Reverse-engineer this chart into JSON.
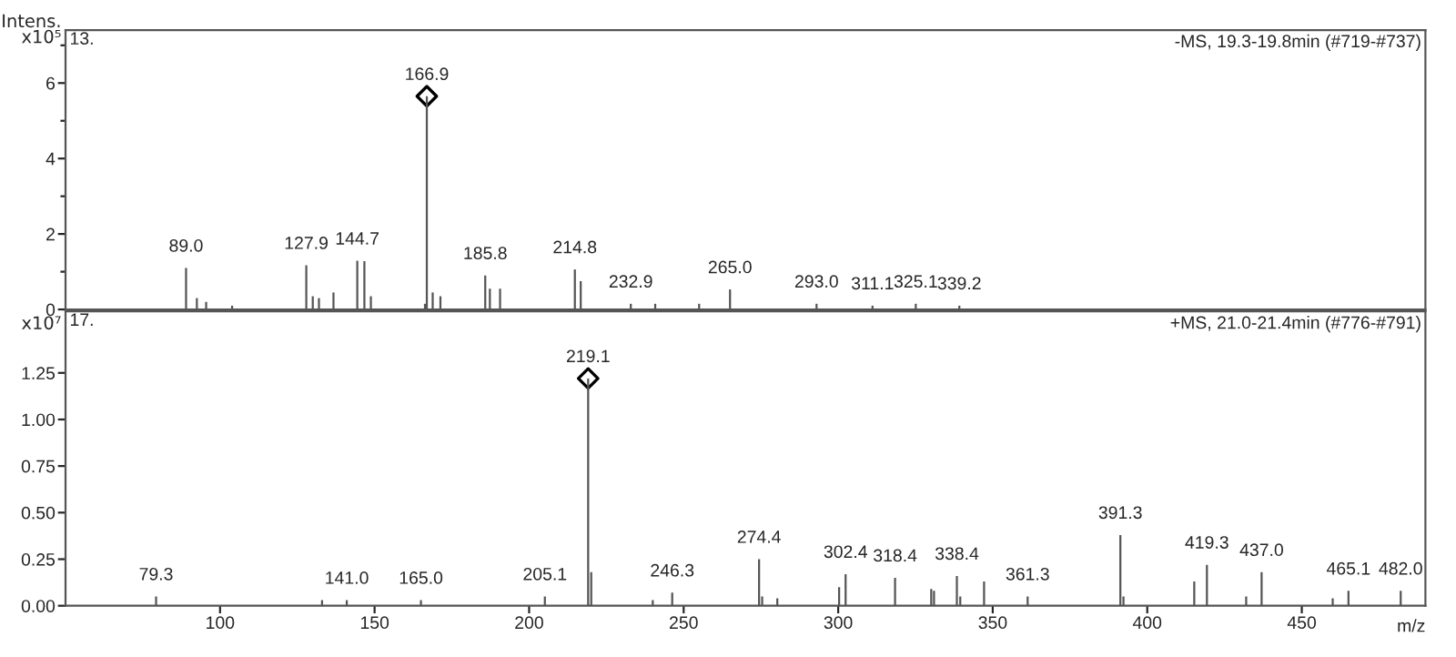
{
  "chart_data": [
    {
      "type": "bar",
      "title": "-MS, 19.3-19.8min (#719-#737)",
      "ylabel": "Intens.\nx10⁵",
      "xlim": [
        50,
        490
      ],
      "xticks": [
        100,
        150,
        200,
        250,
        300,
        350,
        400,
        450
      ],
      "tick_labels": "y",
      "ylim": [
        0,
        7.4
      ],
      "yticks": [
        0,
        {
          "value": 1,
          "label": null
        },
        2,
        {
          "value": 3,
          "label": null
        },
        4,
        {
          "value": 5,
          "label": null
        },
        6,
        {
          "value": 7,
          "label": null
        }
      ],
      "series": [
        {
          "color": "#555555",
          "x": [
            89.0,
            92.5,
            95.5,
            103.9,
            127.9,
            130.0,
            132.0,
            136.7,
            144.4,
            146.7,
            148.8,
            166.3,
            166.9,
            168.8,
            171.3,
            185.8,
            187.3,
            190.6,
            214.8,
            216.7,
            232.9,
            240.8,
            255.0,
            265.0,
            293.0,
            311.1,
            325.1,
            339.2
          ],
          "values": [
            1.1,
            0.3,
            0.2,
            0.1,
            1.17,
            0.35,
            0.3,
            0.45,
            1.29,
            1.28,
            0.35,
            0.15,
            5.65,
            0.45,
            0.35,
            0.9,
            0.55,
            0.55,
            1.06,
            0.75,
            0.15,
            0.15,
            0.15,
            0.53,
            0.15,
            0.1,
            0.15,
            0.1
          ]
        },
        {
          "type": "scatter",
          "marker": "diamond",
          "color": "#000000",
          "x": [
            166.9
          ],
          "values": [
            5.65
          ]
        }
      ],
      "annotations": [
        "13.",
        {
          "text": "89.0",
          "x": 89.0,
          "y": 1.1
        },
        {
          "text": "127.9",
          "x": 127.9,
          "y": 1.17
        },
        {
          "text": "144.7",
          "x": 144.4,
          "y": 1.29
        },
        {
          "text": "166.9",
          "x": 166.9,
          "y": 5.65
        },
        {
          "text": "185.8",
          "x": 185.8,
          "y": 0.9
        },
        {
          "text": "214.8",
          "x": 214.8,
          "y": 1.06
        },
        {
          "text": "232.9",
          "x": 232.9,
          "y": 0.15
        },
        {
          "text": "265.0",
          "x": 265.0,
          "y": 0.53
        },
        {
          "text": "293.0",
          "x": 293.0,
          "y": 0.15
        },
        {
          "text": "311.1",
          "x": 311.1,
          "y": 0.1
        },
        {
          "text": "325.1",
          "x": 325.1,
          "y": 0.15
        },
        {
          "text": "339.2",
          "x": 339.2,
          "y": 0.1
        }
      ]
    },
    {
      "type": "bar",
      "title": "+MS, 21.0-21.4min (#776-#791)",
      "ylabel": "x10⁷",
      "xlabel": "m/z",
      "xlim": [
        50,
        490
      ],
      "xticks": [
        100,
        150,
        200,
        250,
        300,
        350,
        400,
        450
      ],
      "ylim": [
        0,
        1.58
      ],
      "yticks": [
        {
          "value": 0,
          "label": "0.00"
        },
        {
          "value": 0.25,
          "label": "0.25"
        },
        {
          "value": 0.5,
          "label": "0.50"
        },
        {
          "value": 0.75,
          "label": "0.75"
        },
        {
          "value": 1.0,
          "label": "1.00"
        },
        {
          "value": 1.25,
          "label": "1.25"
        }
      ],
      "series": [
        {
          "color": "#555555",
          "x": [
            79.3,
            133.0,
            141.0,
            165.0,
            205.1,
            219.1,
            220.1,
            240.0,
            246.3,
            274.4,
            275.4,
            280.3,
            300.3,
            302.4,
            318.4,
            330.1,
            331.0,
            338.4,
            339.5,
            347.2,
            361.3,
            391.3,
            392.3,
            415.2,
            419.3,
            432.0,
            437.0,
            460.0,
            465.1,
            482.0
          ],
          "values": [
            0.05,
            0.03,
            0.03,
            0.03,
            0.05,
            1.22,
            0.18,
            0.03,
            0.07,
            0.25,
            0.05,
            0.04,
            0.1,
            0.17,
            0.15,
            0.09,
            0.08,
            0.16,
            0.05,
            0.13,
            0.05,
            0.38,
            0.05,
            0.13,
            0.22,
            0.05,
            0.18,
            0.04,
            0.08,
            0.08
          ]
        },
        {
          "type": "scatter",
          "marker": "diamond",
          "color": "#000000",
          "x": [
            219.1
          ],
          "values": [
            1.22
          ]
        }
      ],
      "annotations": [
        "17.",
        {
          "text": "79.3",
          "x": 79.3,
          "y": 0.05
        },
        {
          "text": "141.0",
          "x": 141.0,
          "y": 0.03
        },
        {
          "text": "165.0",
          "x": 165.0,
          "y": 0.03
        },
        {
          "text": "205.1",
          "x": 205.1,
          "y": 0.05
        },
        {
          "text": "219.1",
          "x": 219.1,
          "y": 1.22
        },
        {
          "text": "246.3",
          "x": 246.3,
          "y": 0.07
        },
        {
          "text": "274.4",
          "x": 274.4,
          "y": 0.25
        },
        {
          "text": "302.4",
          "x": 302.4,
          "y": 0.17
        },
        {
          "text": "318.4",
          "x": 318.4,
          "y": 0.15
        },
        {
          "text": "338.4",
          "x": 338.4,
          "y": 0.16
        },
        {
          "text": "361.3",
          "x": 361.3,
          "y": 0.05
        },
        {
          "text": "391.3",
          "x": 391.3,
          "y": 0.38
        },
        {
          "text": "419.3",
          "x": 419.3,
          "y": 0.22
        },
        {
          "text": "437.0",
          "x": 437.0,
          "y": 0.18
        },
        {
          "text": "465.1",
          "x": 465.1,
          "y": 0.08
        },
        {
          "text": "482.0",
          "x": 482.0,
          "y": 0.08
        }
      ]
    }
  ]
}
